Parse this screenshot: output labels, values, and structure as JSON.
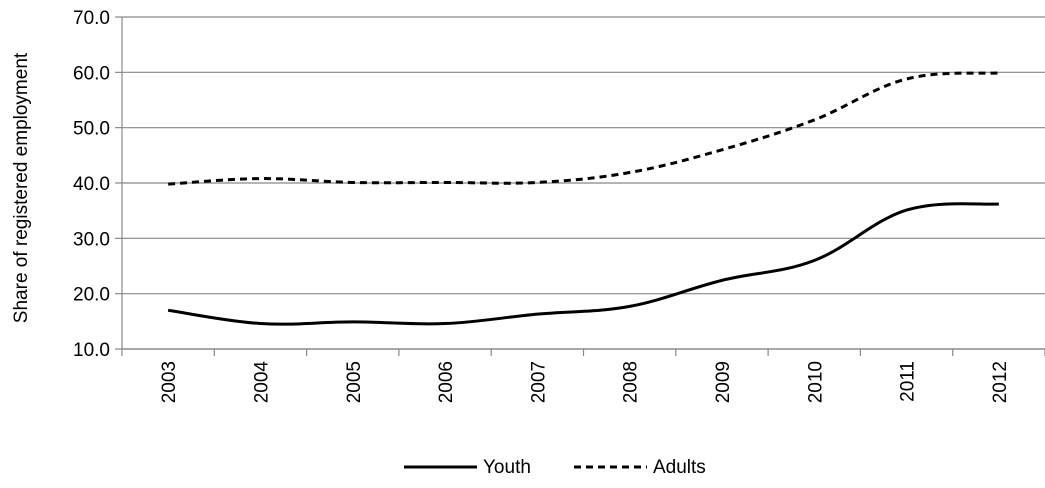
{
  "chart_data": {
    "type": "line",
    "title": "",
    "xlabel": "",
    "ylabel": "Share of registered employment",
    "categories": [
      "2003",
      "2004",
      "2005",
      "2006",
      "2007",
      "2008",
      "2009",
      "2010",
      "2011",
      "2012"
    ],
    "ylim": [
      10,
      70
    ],
    "yticks": [
      "10.0",
      "20.0",
      "30.0",
      "40.0",
      "50.0",
      "60.0",
      "70.0"
    ],
    "grid": true,
    "legend_position": "bottom",
    "series": [
      {
        "name": "Youth",
        "style": "solid",
        "color": "#000000",
        "values": [
          17.0,
          14.6,
          14.9,
          14.6,
          16.3,
          17.7,
          22.4,
          26.0,
          35.1,
          36.2
        ]
      },
      {
        "name": "Adults",
        "style": "dashed",
        "color": "#000000",
        "values": [
          39.8,
          40.8,
          40.1,
          40.1,
          40.1,
          41.9,
          46.0,
          51.4,
          58.8,
          59.9
        ]
      }
    ]
  },
  "colors": {
    "gridline": "#888888",
    "axis": "#888888",
    "line": "#000000"
  }
}
